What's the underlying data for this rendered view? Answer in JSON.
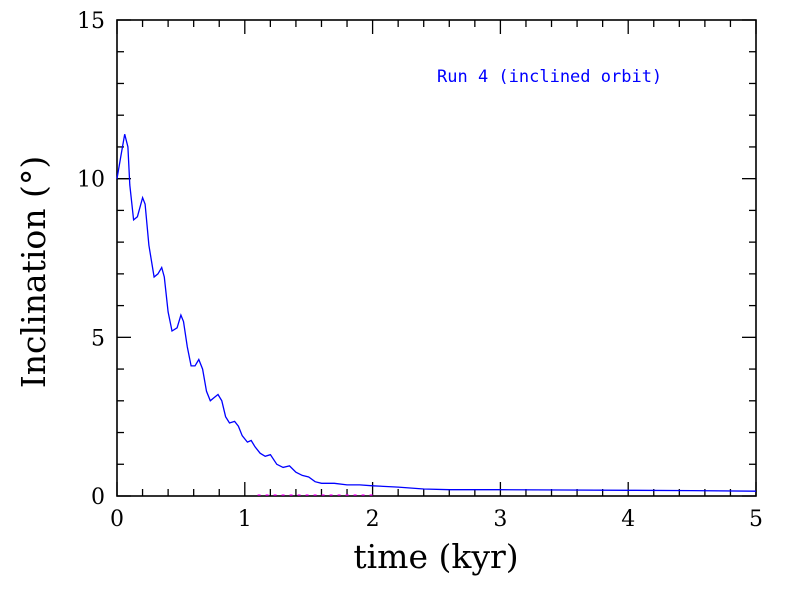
{
  "chart_data": {
    "type": "line",
    "xlabel": "time  (kyr)",
    "ylabel": "Inclination   (°)",
    "xlim": [
      0,
      5
    ],
    "ylim": [
      0,
      15
    ],
    "x_ticks": [
      "0",
      "1",
      "2",
      "3",
      "4",
      "5"
    ],
    "y_ticks": [
      "0",
      "5",
      "10",
      "15"
    ],
    "grid": false,
    "annotation": "Run 4 (inclined orbit)",
    "colors": {
      "series": "#0000ff",
      "annotation": "#0000ff",
      "secondary": "#ff00ff",
      "axes": "#000000"
    },
    "series": [
      {
        "color": "#0000ff",
        "x": [
          0,
          0.03,
          0.06,
          0.085,
          0.1,
          0.13,
          0.16,
          0.2,
          0.22,
          0.25,
          0.29,
          0.32,
          0.35,
          0.37,
          0.4,
          0.43,
          0.47,
          0.5,
          0.52,
          0.55,
          0.58,
          0.61,
          0.64,
          0.67,
          0.7,
          0.73,
          0.76,
          0.79,
          0.82,
          0.85,
          0.88,
          0.92,
          0.95,
          0.98,
          1.02,
          1.05,
          1.08,
          1.12,
          1.16,
          1.2,
          1.25,
          1.3,
          1.35,
          1.4,
          1.45,
          1.5,
          1.55,
          1.6,
          1.7,
          1.8,
          1.9,
          2.0,
          2.2,
          2.4,
          2.6,
          3.0,
          3.5,
          4.0,
          4.5,
          5.0
        ],
        "y": [
          10.0,
          10.7,
          11.4,
          11.0,
          9.8,
          8.7,
          8.8,
          9.4,
          9.2,
          7.9,
          6.9,
          7.0,
          7.2,
          6.9,
          5.8,
          5.2,
          5.3,
          5.7,
          5.5,
          4.7,
          4.1,
          4.1,
          4.3,
          4.0,
          3.3,
          3.0,
          3.1,
          3.2,
          3.0,
          2.5,
          2.3,
          2.35,
          2.2,
          1.9,
          1.7,
          1.75,
          1.55,
          1.35,
          1.25,
          1.3,
          1.0,
          0.9,
          0.95,
          0.75,
          0.65,
          0.6,
          0.45,
          0.4,
          0.4,
          0.35,
          0.35,
          0.32,
          0.28,
          0.22,
          0.2,
          0.2,
          0.19,
          0.18,
          0.17,
          0.15
        ]
      }
    ]
  }
}
